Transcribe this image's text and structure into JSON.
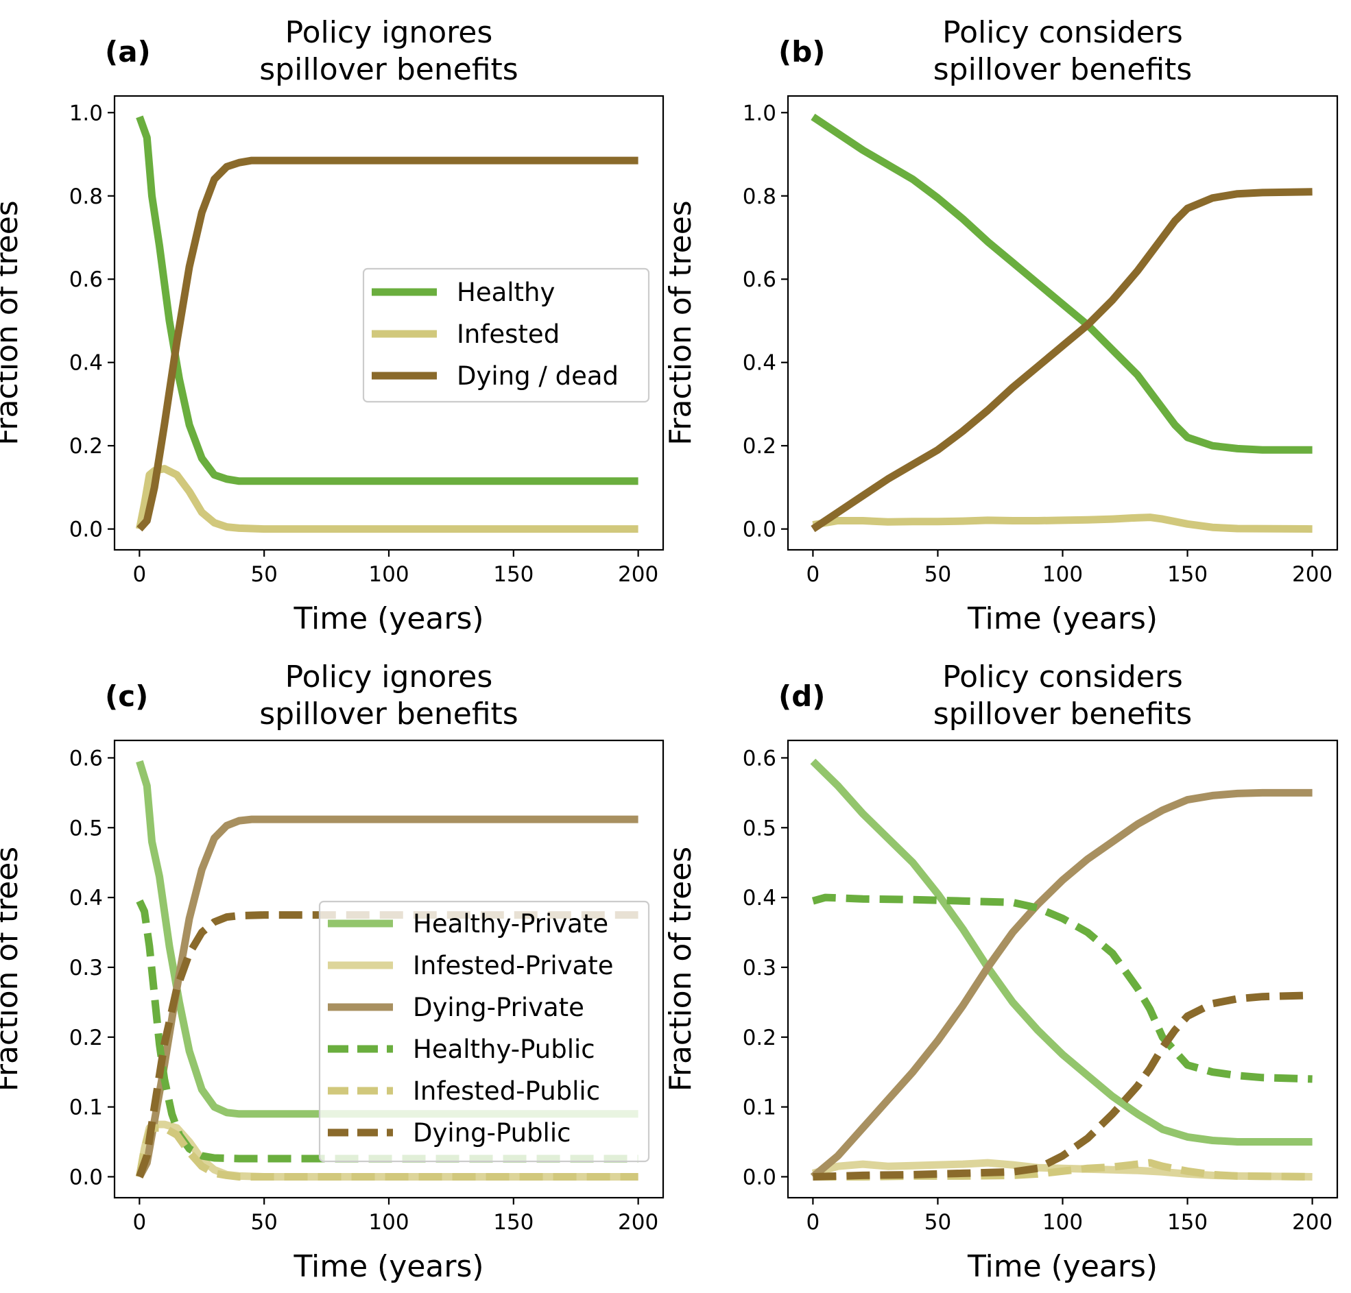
{
  "chart_data": [
    {
      "type": "line",
      "panel": "(a)",
      "title": "Policy ignores\nspillover benefits",
      "xlabel": "Time (years)",
      "ylabel": "Fraction of trees",
      "xlim": [
        -10,
        210
      ],
      "ylim": [
        -0.05,
        1.04
      ],
      "xticks": [
        0,
        50,
        100,
        150,
        200
      ],
      "yticks": [
        0.0,
        0.2,
        0.4,
        0.6,
        0.8,
        1.0
      ],
      "ytick_format": 1,
      "grid": false,
      "legend": {
        "location": "center-right",
        "entries": [
          "Healthy",
          "Infested",
          "Dying / dead"
        ]
      },
      "series": [
        {
          "name": "Healthy",
          "color": "#6aae3e",
          "dash": "solid",
          "x": [
            0,
            3,
            5,
            8,
            12,
            16,
            20,
            25,
            30,
            35,
            40,
            50,
            60,
            100,
            150,
            200
          ],
          "values": [
            0.99,
            0.94,
            0.8,
            0.68,
            0.5,
            0.36,
            0.25,
            0.17,
            0.13,
            0.12,
            0.115,
            0.115,
            0.115,
            0.115,
            0.115,
            0.115
          ]
        },
        {
          "name": "Infested",
          "color": "#d1c87c",
          "dash": "solid",
          "x": [
            0,
            2,
            4,
            6,
            10,
            15,
            20,
            25,
            30,
            35,
            40,
            50,
            60,
            100,
            150,
            200
          ],
          "values": [
            0.0,
            0.06,
            0.13,
            0.14,
            0.145,
            0.13,
            0.09,
            0.04,
            0.015,
            0.005,
            0.002,
            0.0,
            0.0,
            0.0,
            0.0,
            0.0
          ]
        },
        {
          "name": "Dying / dead",
          "color": "#8a6a2b",
          "dash": "solid",
          "x": [
            0,
            3,
            6,
            10,
            15,
            20,
            25,
            30,
            35,
            40,
            45,
            50,
            60,
            100,
            150,
            200
          ],
          "values": [
            0.0,
            0.02,
            0.1,
            0.25,
            0.45,
            0.63,
            0.76,
            0.84,
            0.87,
            0.88,
            0.885,
            0.885,
            0.885,
            0.885,
            0.885,
            0.885
          ]
        }
      ]
    },
    {
      "type": "line",
      "panel": "(b)",
      "title": "Policy considers\nspillover benefits",
      "xlabel": "Time (years)",
      "ylabel": "Fraction of trees",
      "xlim": [
        -10,
        210
      ],
      "ylim": [
        -0.05,
        1.04
      ],
      "xticks": [
        0,
        50,
        100,
        150,
        200
      ],
      "yticks": [
        0.0,
        0.2,
        0.4,
        0.6,
        0.8,
        1.0
      ],
      "ytick_format": 1,
      "grid": false,
      "legend": null,
      "series": [
        {
          "name": "Healthy",
          "color": "#6aae3e",
          "dash": "solid",
          "x": [
            0,
            10,
            20,
            30,
            40,
            50,
            60,
            70,
            80,
            90,
            100,
            110,
            120,
            130,
            140,
            145,
            150,
            160,
            170,
            180,
            200
          ],
          "values": [
            0.99,
            0.95,
            0.91,
            0.875,
            0.84,
            0.795,
            0.745,
            0.69,
            0.64,
            0.59,
            0.54,
            0.49,
            0.43,
            0.37,
            0.29,
            0.25,
            0.22,
            0.2,
            0.193,
            0.19,
            0.19
          ]
        },
        {
          "name": "Infested",
          "color": "#d1c87c",
          "dash": "solid",
          "x": [
            0,
            10,
            20,
            30,
            40,
            50,
            60,
            70,
            80,
            90,
            100,
            110,
            120,
            130,
            135,
            140,
            150,
            160,
            170,
            200
          ],
          "values": [
            0.01,
            0.02,
            0.02,
            0.017,
            0.018,
            0.018,
            0.019,
            0.021,
            0.02,
            0.02,
            0.021,
            0.022,
            0.024,
            0.027,
            0.028,
            0.024,
            0.012,
            0.004,
            0.001,
            0.0
          ]
        },
        {
          "name": "Dying / dead",
          "color": "#8a6a2b",
          "dash": "solid",
          "x": [
            0,
            10,
            20,
            30,
            40,
            50,
            60,
            70,
            80,
            90,
            100,
            110,
            120,
            130,
            140,
            145,
            150,
            160,
            170,
            180,
            200
          ],
          "values": [
            0.0,
            0.04,
            0.08,
            0.12,
            0.155,
            0.19,
            0.235,
            0.285,
            0.34,
            0.39,
            0.44,
            0.49,
            0.55,
            0.62,
            0.7,
            0.74,
            0.77,
            0.795,
            0.805,
            0.808,
            0.81
          ]
        }
      ]
    },
    {
      "type": "line",
      "panel": "(c)",
      "title": "Policy ignores\nspillover benefits",
      "xlabel": "Time (years)",
      "ylabel": "Fraction of trees",
      "xlim": [
        -10,
        210
      ],
      "ylim": [
        -0.03,
        0.625
      ],
      "xticks": [
        0,
        50,
        100,
        150,
        200
      ],
      "yticks": [
        0.0,
        0.1,
        0.2,
        0.3,
        0.4,
        0.5,
        0.6
      ],
      "ytick_format": 1,
      "grid": false,
      "legend": {
        "location": "lower-right",
        "entries": [
          "Healthy-Private",
          "Infested-Private",
          "Dying-Private",
          "Healthy-Public",
          "Infested-Public",
          "Dying-Public"
        ]
      },
      "series": [
        {
          "name": "Healthy-Private",
          "color": "#93c56c",
          "dash": "solid",
          "x": [
            0,
            3,
            5,
            8,
            12,
            16,
            20,
            25,
            30,
            35,
            40,
            50,
            60,
            100,
            150,
            200
          ],
          "values": [
            0.595,
            0.56,
            0.48,
            0.43,
            0.33,
            0.25,
            0.18,
            0.125,
            0.1,
            0.092,
            0.09,
            0.09,
            0.09,
            0.09,
            0.09,
            0.09
          ]
        },
        {
          "name": "Infested-Private",
          "color": "#ddd59a",
          "dash": "solid",
          "x": [
            0,
            2,
            4,
            6,
            10,
            15,
            20,
            25,
            30,
            35,
            40,
            50,
            60,
            100,
            150,
            200
          ],
          "values": [
            0.0,
            0.04,
            0.07,
            0.075,
            0.075,
            0.07,
            0.05,
            0.025,
            0.01,
            0.003,
            0.001,
            0.0,
            0.0,
            0.0,
            0.0,
            0.0
          ]
        },
        {
          "name": "Dying-Private",
          "color": "#a89060",
          "dash": "solid",
          "x": [
            0,
            3,
            6,
            10,
            15,
            20,
            25,
            30,
            35,
            40,
            45,
            50,
            60,
            100,
            150,
            200
          ],
          "values": [
            0.0,
            0.02,
            0.08,
            0.16,
            0.27,
            0.37,
            0.44,
            0.485,
            0.503,
            0.51,
            0.512,
            0.512,
            0.512,
            0.512,
            0.512,
            0.512
          ]
        },
        {
          "name": "Healthy-Public",
          "color": "#6aae3e",
          "dash": "dashed",
          "x": [
            0,
            2,
            4,
            6,
            8,
            10,
            13,
            16,
            20,
            25,
            30,
            40,
            50,
            100,
            150,
            200
          ],
          "values": [
            0.395,
            0.38,
            0.33,
            0.26,
            0.19,
            0.14,
            0.09,
            0.06,
            0.04,
            0.03,
            0.027,
            0.026,
            0.026,
            0.026,
            0.026,
            0.026
          ]
        },
        {
          "name": "Infested-Public",
          "color": "#d1c87c",
          "dash": "dashed",
          "x": [
            0,
            2,
            4,
            6,
            10,
            15,
            20,
            25,
            30,
            35,
            40,
            50,
            60,
            100,
            150,
            200
          ],
          "values": [
            0.0,
            0.04,
            0.065,
            0.07,
            0.07,
            0.06,
            0.035,
            0.015,
            0.005,
            0.002,
            0.0,
            0.0,
            0.0,
            0.0,
            0.0,
            0.0
          ]
        },
        {
          "name": "Dying-Public",
          "color": "#8a6a2b",
          "dash": "dashed",
          "x": [
            0,
            3,
            6,
            10,
            15,
            20,
            25,
            30,
            35,
            40,
            50,
            60,
            100,
            150,
            200
          ],
          "values": [
            0.0,
            0.03,
            0.1,
            0.19,
            0.27,
            0.32,
            0.35,
            0.365,
            0.372,
            0.374,
            0.375,
            0.375,
            0.375,
            0.375,
            0.375
          ]
        }
      ]
    },
    {
      "type": "line",
      "panel": "(d)",
      "title": "Policy considers\nspillover benefits",
      "xlabel": "Time (years)",
      "ylabel": "Fraction of trees",
      "xlim": [
        -10,
        210
      ],
      "ylim": [
        -0.03,
        0.625
      ],
      "xticks": [
        0,
        50,
        100,
        150,
        200
      ],
      "yticks": [
        0.0,
        0.1,
        0.2,
        0.3,
        0.4,
        0.5,
        0.6
      ],
      "ytick_format": 1,
      "grid": false,
      "legend": null,
      "series": [
        {
          "name": "Healthy-Private",
          "color": "#93c56c",
          "dash": "solid",
          "x": [
            0,
            10,
            20,
            30,
            40,
            50,
            60,
            70,
            80,
            90,
            100,
            110,
            120,
            130,
            140,
            150,
            160,
            170,
            180,
            200
          ],
          "values": [
            0.595,
            0.56,
            0.52,
            0.485,
            0.45,
            0.405,
            0.355,
            0.3,
            0.25,
            0.21,
            0.175,
            0.145,
            0.115,
            0.09,
            0.068,
            0.057,
            0.052,
            0.05,
            0.05,
            0.05
          ]
        },
        {
          "name": "Infested-Private",
          "color": "#ddd59a",
          "dash": "solid",
          "x": [
            0,
            10,
            20,
            30,
            40,
            50,
            60,
            70,
            80,
            90,
            100,
            110,
            120,
            130,
            140,
            150,
            160,
            170,
            200
          ],
          "values": [
            0.005,
            0.015,
            0.018,
            0.015,
            0.016,
            0.017,
            0.018,
            0.02,
            0.017,
            0.013,
            0.012,
            0.011,
            0.01,
            0.009,
            0.007,
            0.004,
            0.002,
            0.001,
            0.0
          ]
        },
        {
          "name": "Dying-Private",
          "color": "#a89060",
          "dash": "solid",
          "x": [
            0,
            10,
            20,
            30,
            40,
            50,
            60,
            70,
            80,
            90,
            100,
            110,
            120,
            130,
            140,
            150,
            160,
            170,
            180,
            200
          ],
          "values": [
            0.0,
            0.03,
            0.07,
            0.11,
            0.15,
            0.195,
            0.245,
            0.3,
            0.35,
            0.39,
            0.425,
            0.455,
            0.48,
            0.505,
            0.525,
            0.54,
            0.546,
            0.549,
            0.55,
            0.55
          ]
        },
        {
          "name": "Healthy-Public",
          "color": "#6aae3e",
          "dash": "dashed",
          "x": [
            0,
            5,
            20,
            40,
            60,
            80,
            90,
            100,
            110,
            120,
            130,
            135,
            140,
            145,
            150,
            160,
            170,
            180,
            200
          ],
          "values": [
            0.395,
            0.4,
            0.398,
            0.397,
            0.395,
            0.393,
            0.385,
            0.37,
            0.35,
            0.32,
            0.27,
            0.24,
            0.2,
            0.18,
            0.16,
            0.15,
            0.145,
            0.142,
            0.14
          ]
        },
        {
          "name": "Infested-Public",
          "color": "#d1c87c",
          "dash": "dashed",
          "x": [
            0,
            20,
            40,
            60,
            80,
            90,
            100,
            110,
            120,
            130,
            135,
            140,
            150,
            160,
            170,
            200
          ],
          "values": [
            0.0,
            0.0,
            0.001,
            0.001,
            0.002,
            0.004,
            0.008,
            0.012,
            0.014,
            0.018,
            0.02,
            0.015,
            0.008,
            0.003,
            0.001,
            0.0
          ]
        },
        {
          "name": "Dying-Public",
          "color": "#8a6a2b",
          "dash": "dashed",
          "x": [
            0,
            20,
            40,
            60,
            80,
            90,
            100,
            110,
            120,
            130,
            135,
            140,
            145,
            150,
            160,
            170,
            180,
            200
          ],
          "values": [
            0.0,
            0.002,
            0.003,
            0.005,
            0.007,
            0.012,
            0.03,
            0.055,
            0.09,
            0.13,
            0.155,
            0.185,
            0.21,
            0.23,
            0.248,
            0.255,
            0.258,
            0.26
          ]
        }
      ]
    }
  ]
}
